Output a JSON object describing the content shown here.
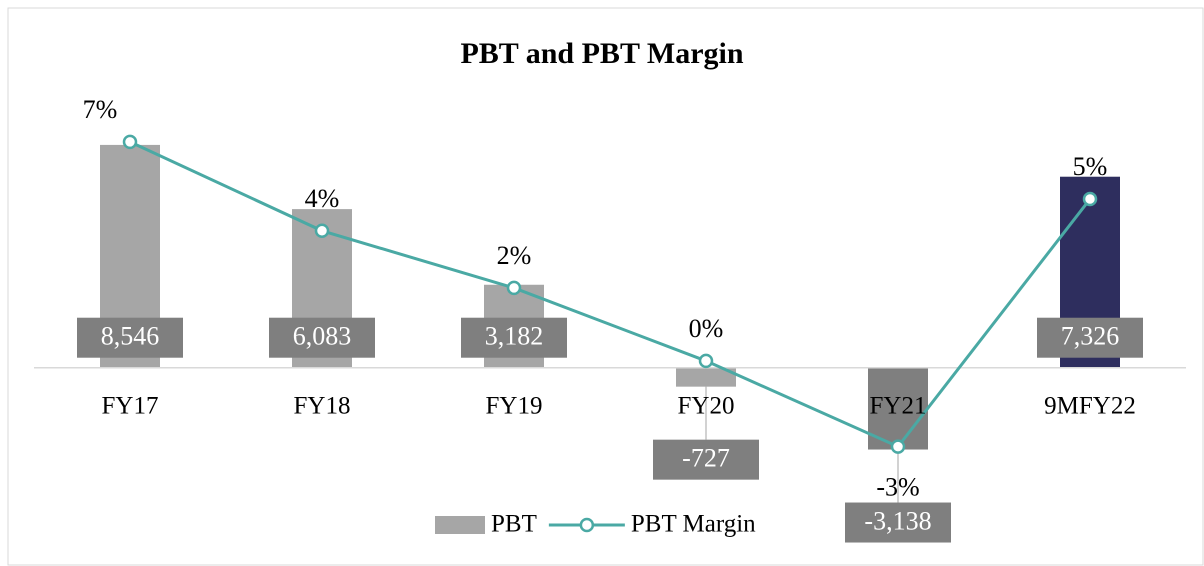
{
  "chart_data": {
    "type": "bar",
    "title": "PBT and PBT Margin",
    "categories": [
      "FY17",
      "FY18",
      "FY19",
      "FY20",
      "FY21",
      "9MFY22"
    ],
    "series": [
      {
        "name": "PBT",
        "type": "bar",
        "color": "#a6a6a6",
        "colors": [
          "#a6a6a6",
          "#a6a6a6",
          "#a6a6a6",
          "#a6a6a6",
          "#7f7f7f",
          "#2e2e5e"
        ],
        "values": [
          8546,
          6083,
          3182,
          -727,
          -3138,
          7326
        ],
        "value_labels": [
          "8,546",
          "6,083",
          "3,182",
          "-727",
          "-3,138",
          "7,326"
        ]
      },
      {
        "name": "PBT Margin",
        "type": "line",
        "axis": "y2",
        "color": "#4aa9a4",
        "values": [
          7.0,
          4.2,
          2.4,
          0.1,
          -2.6,
          5.2
        ],
        "value_labels": [
          "7%",
          "4%",
          "2%",
          "0%",
          "-3%",
          "5%"
        ]
      }
    ],
    "ylim": [
      -4000,
      10000
    ],
    "y2lim": [
      -3.4,
      8.1
    ],
    "legend": "bottom"
  }
}
